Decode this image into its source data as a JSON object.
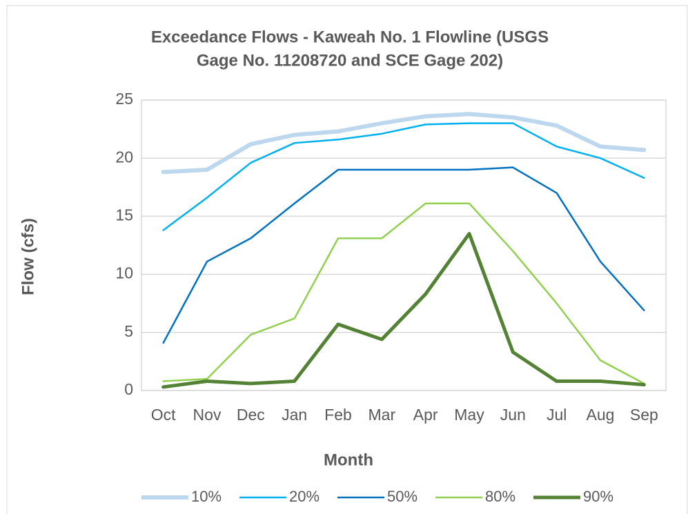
{
  "chart_data": {
    "type": "line",
    "title": [
      "Exceedance Flows - Kaweah No. 1 Flowline (USGS",
      "Gage No. 11208720 and SCE Gage 202)"
    ],
    "x_label": "Month",
    "y_label": "Flow (cfs)",
    "categories": [
      "Oct",
      "Nov",
      "Dec",
      "Jan",
      "Feb",
      "Mar",
      "Apr",
      "May",
      "Jun",
      "Jul",
      "Aug",
      "Sep"
    ],
    "ylim": [
      0,
      25
    ],
    "yticks": [
      0,
      5,
      10,
      15,
      20,
      25
    ],
    "grid": true,
    "legend": "bottom",
    "series": [
      {
        "name": "10%",
        "color": "#bdd7ee",
        "width": 6,
        "values": [
          18.8,
          19.0,
          21.2,
          22.0,
          22.3,
          23.0,
          23.6,
          23.8,
          23.5,
          22.8,
          21.0,
          20.7
        ]
      },
      {
        "name": "20%",
        "color": "#00b0f0",
        "width": 2.5,
        "values": [
          13.8,
          16.6,
          19.6,
          21.3,
          21.6,
          22.1,
          22.9,
          23.0,
          23.0,
          21.0,
          20.0,
          18.3
        ]
      },
      {
        "name": "50%",
        "color": "#0070c0",
        "width": 2.5,
        "values": [
          4.1,
          11.1,
          13.1,
          16.1,
          19.0,
          19.0,
          19.0,
          19.0,
          19.2,
          17.0,
          11.1,
          6.9
        ]
      },
      {
        "name": "80%",
        "color": "#92d050",
        "width": 2.5,
        "values": [
          0.8,
          1.0,
          4.8,
          6.2,
          13.1,
          13.1,
          16.1,
          16.1,
          12.0,
          7.5,
          2.6,
          0.6
        ]
      },
      {
        "name": "90%",
        "color": "#548235",
        "width": 5,
        "values": [
          0.3,
          0.8,
          0.6,
          0.8,
          5.7,
          4.4,
          8.3,
          13.5,
          3.3,
          0.8,
          0.8,
          0.5
        ]
      }
    ]
  }
}
